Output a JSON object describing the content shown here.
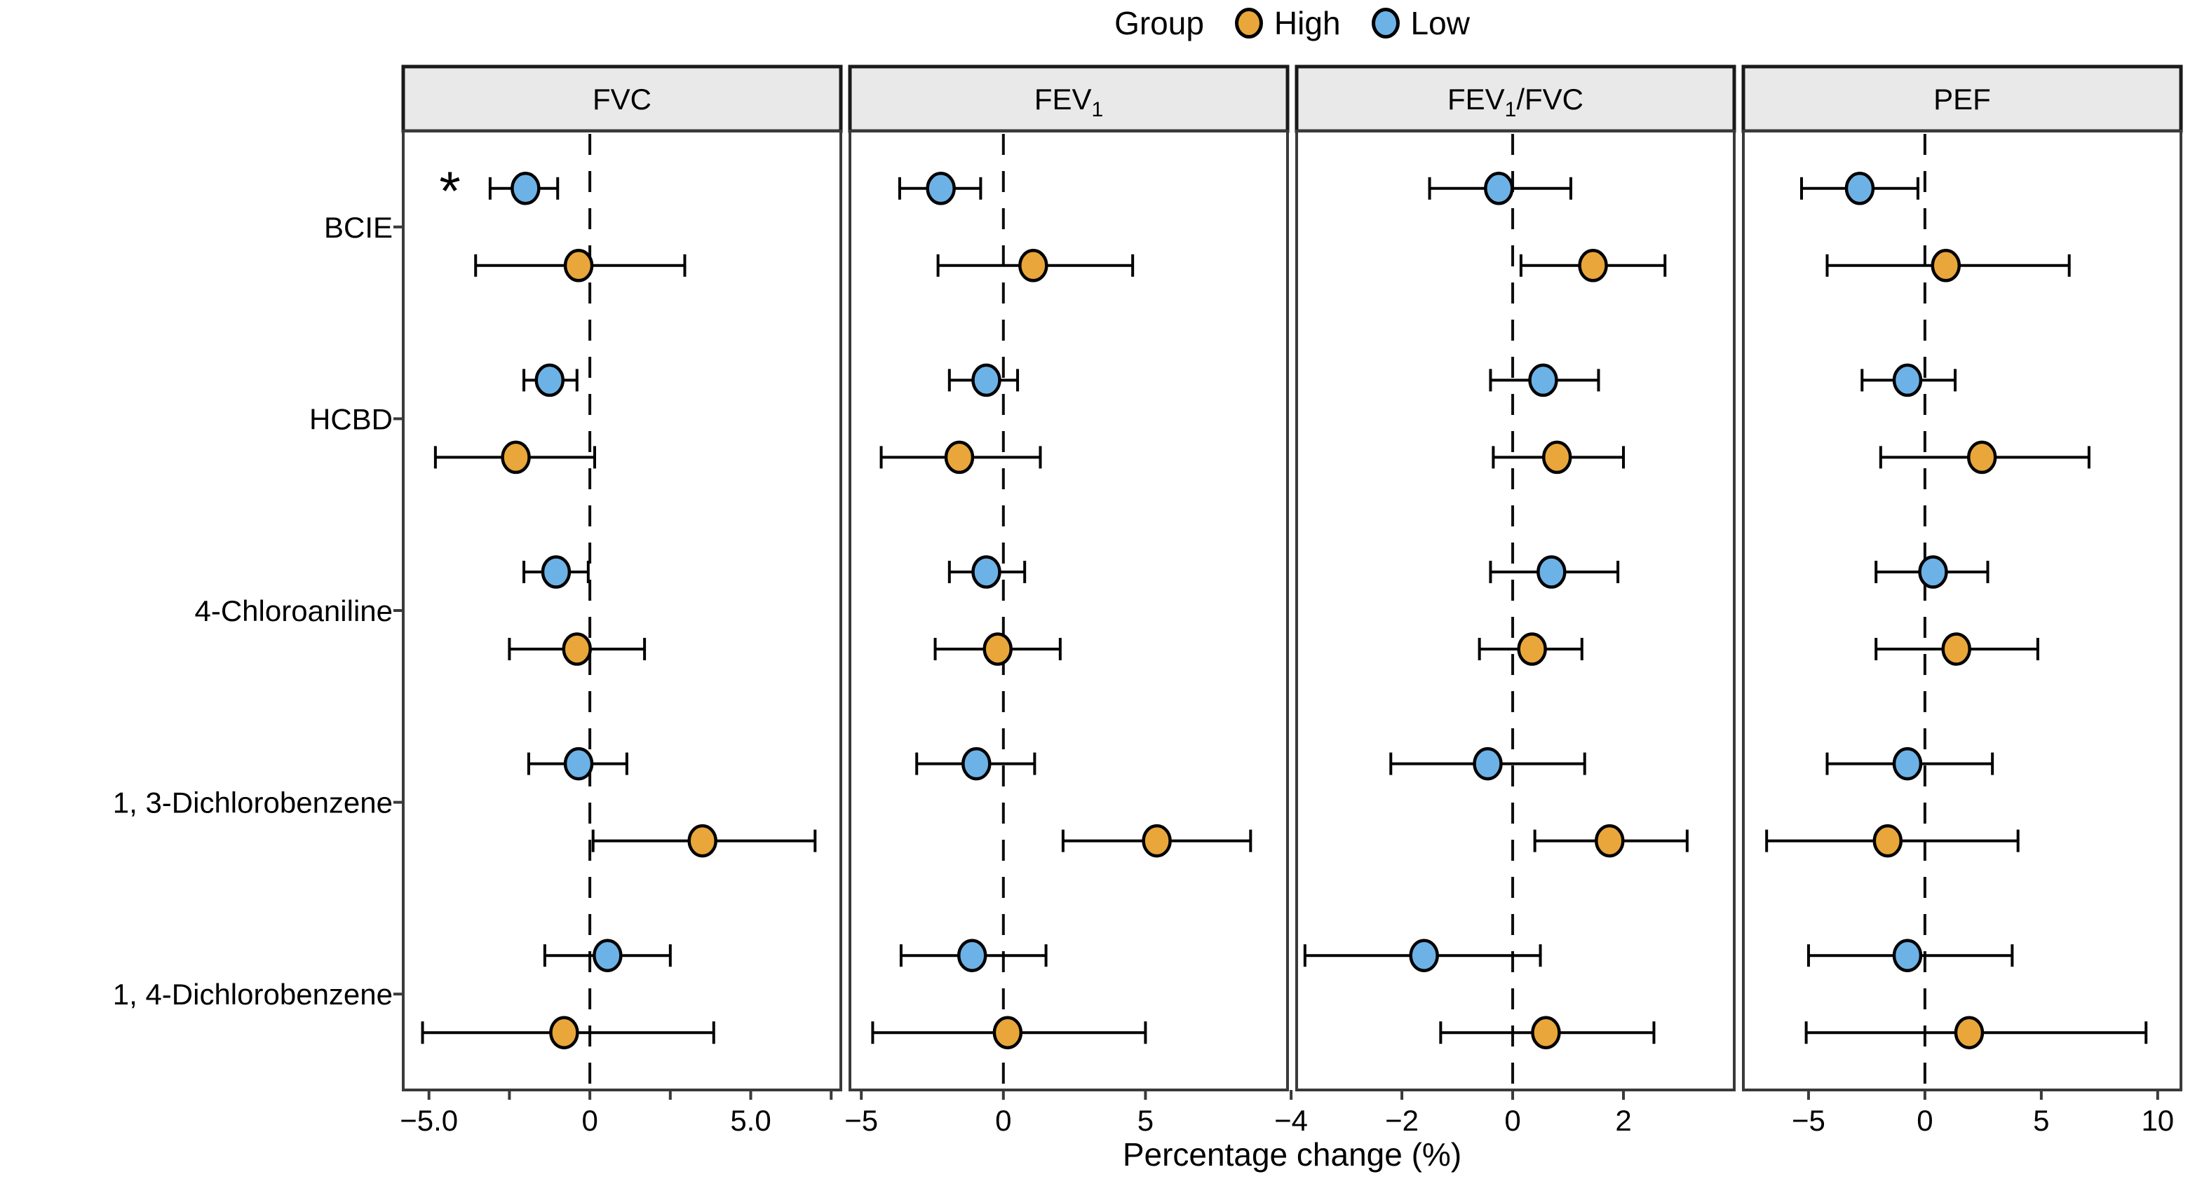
{
  "legend": {
    "title": "Group",
    "items": [
      {
        "label": "High",
        "color": "#E9A63A"
      },
      {
        "label": "Low",
        "color": "#6CB2E7"
      }
    ]
  },
  "axis": {
    "xlabel": "Percentage change (%)"
  },
  "chart_data": {
    "type": "scatter",
    "subtype": "horizontal-dot-whisker-forest",
    "orientation": "horizontal",
    "xlabel": "Percentage change (%)",
    "categories": [
      "BCIE",
      "HCBD",
      "4-Chloroaniline",
      "1, 3-Dichlorobenzene",
      "1, 4-Dichlorobenzene"
    ],
    "groups": [
      "High",
      "Low"
    ],
    "group_colors": {
      "High": "#E9A63A",
      "Low": "#6CB2E7"
    },
    "group_order_within_row": [
      "Low",
      "High"
    ],
    "zero_line": {
      "x": 0,
      "style": "dashed"
    },
    "legend_position": "top",
    "grid": false,
    "panels": [
      {
        "id": "FVC",
        "title_parts": [
          [
            "FVC",
            false
          ]
        ],
        "xlim": [
          -5.8,
          7.8
        ],
        "ticks": [
          -5,
          -2.5,
          0,
          2.5,
          5,
          7.5
        ],
        "tick_labels": [
          "−5.0",
          "",
          "0",
          "",
          "5.0",
          ""
        ],
        "series": [
          {
            "group": "Low",
            "points": [
              {
                "category": "BCIE",
                "est": -2.0,
                "lo": -3.1,
                "hi": -1.0
              },
              {
                "category": "HCBD",
                "est": -1.25,
                "lo": -2.05,
                "hi": -0.4
              },
              {
                "category": "4-Chloroaniline",
                "est": -1.05,
                "lo": -2.05,
                "hi": -0.05
              },
              {
                "category": "1, 3-Dichlorobenzene",
                "est": -0.35,
                "lo": -1.9,
                "hi": 1.15
              },
              {
                "category": "1, 4-Dichlorobenzene",
                "est": 0.55,
                "lo": -1.4,
                "hi": 2.5
              }
            ]
          },
          {
            "group": "High",
            "points": [
              {
                "category": "BCIE",
                "est": -0.35,
                "lo": -3.55,
                "hi": 2.95
              },
              {
                "category": "HCBD",
                "est": -2.3,
                "lo": -4.8,
                "hi": 0.15
              },
              {
                "category": "4-Chloroaniline",
                "est": -0.4,
                "lo": -2.5,
                "hi": 1.7
              },
              {
                "category": "1, 3-Dichlorobenzene",
                "est": 3.5,
                "lo": 0.1,
                "hi": 7.0
              },
              {
                "category": "1, 4-Dichlorobenzene",
                "est": -0.8,
                "lo": -5.2,
                "hi": 3.85
              }
            ]
          }
        ]
      },
      {
        "id": "FEV1",
        "title_parts": [
          [
            "FEV",
            false
          ],
          [
            "1",
            true
          ]
        ],
        "xlim": [
          -5.4,
          10.0
        ],
        "ticks": [
          -5,
          0,
          5
        ],
        "tick_labels": [
          "−5",
          "0",
          "5"
        ],
        "series": [
          {
            "group": "Low",
            "points": [
              {
                "category": "BCIE",
                "est": -2.2,
                "lo": -3.65,
                "hi": -0.8
              },
              {
                "category": "HCBD",
                "est": -0.6,
                "lo": -1.9,
                "hi": 0.5
              },
              {
                "category": "4-Chloroaniline",
                "est": -0.6,
                "lo": -1.9,
                "hi": 0.75
              },
              {
                "category": "1, 3-Dichlorobenzene",
                "est": -0.95,
                "lo": -3.05,
                "hi": 1.1
              },
              {
                "category": "1, 4-Dichlorobenzene",
                "est": -1.1,
                "lo": -3.6,
                "hi": 1.5
              }
            ]
          },
          {
            "group": "High",
            "points": [
              {
                "category": "BCIE",
                "est": 1.05,
                "lo": -2.3,
                "hi": 4.55
              },
              {
                "category": "HCBD",
                "est": -1.55,
                "lo": -4.3,
                "hi": 1.3
              },
              {
                "category": "4-Chloroaniline",
                "est": -0.2,
                "lo": -2.4,
                "hi": 2.0
              },
              {
                "category": "1, 3-Dichlorobenzene",
                "est": 5.4,
                "lo": 2.1,
                "hi": 8.7
              },
              {
                "category": "1, 4-Dichlorobenzene",
                "est": 0.15,
                "lo": -4.6,
                "hi": 5.0
              }
            ]
          }
        ]
      },
      {
        "id": "FEV1/FVC",
        "title_parts": [
          [
            "FEV",
            false
          ],
          [
            "1",
            true
          ],
          [
            "/FVC",
            false
          ]
        ],
        "xlim": [
          -3.9,
          4.0
        ],
        "ticks": [
          -4,
          -2,
          0,
          2
        ],
        "tick_labels": [
          "−4",
          "−2",
          "0",
          "2"
        ],
        "series": [
          {
            "group": "Low",
            "points": [
              {
                "category": "BCIE",
                "est": -0.25,
                "lo": -1.5,
                "hi": 1.05
              },
              {
                "category": "HCBD",
                "est": 0.55,
                "lo": -0.4,
                "hi": 1.55
              },
              {
                "category": "4-Chloroaniline",
                "est": 0.7,
                "lo": -0.4,
                "hi": 1.9
              },
              {
                "category": "1, 3-Dichlorobenzene",
                "est": -0.45,
                "lo": -2.2,
                "hi": 1.3
              },
              {
                "category": "1, 4-Dichlorobenzene",
                "est": -1.6,
                "lo": -3.75,
                "hi": 0.5
              }
            ]
          },
          {
            "group": "High",
            "points": [
              {
                "category": "BCIE",
                "est": 1.45,
                "lo": 0.15,
                "hi": 2.75
              },
              {
                "category": "HCBD",
                "est": 0.8,
                "lo": -0.35,
                "hi": 2.0
              },
              {
                "category": "4-Chloroaniline",
                "est": 0.35,
                "lo": -0.6,
                "hi": 1.25
              },
              {
                "category": "1, 3-Dichlorobenzene",
                "est": 1.75,
                "lo": 0.4,
                "hi": 3.15
              },
              {
                "category": "1, 4-Dichlorobenzene",
                "est": 0.6,
                "lo": -1.3,
                "hi": 2.55
              }
            ]
          }
        ]
      },
      {
        "id": "PEF",
        "title_parts": [
          [
            "PEF",
            false
          ]
        ],
        "xlim": [
          -7.8,
          11.0
        ],
        "ticks": [
          -5,
          0,
          5,
          10
        ],
        "tick_labels": [
          "−5",
          "0",
          "5",
          "10"
        ],
        "series": [
          {
            "group": "Low",
            "points": [
              {
                "category": "BCIE",
                "est": -2.8,
                "lo": -5.3,
                "hi": -0.3
              },
              {
                "category": "HCBD",
                "est": -0.75,
                "lo": -2.7,
                "hi": 1.3
              },
              {
                "category": "4-Chloroaniline",
                "est": 0.35,
                "lo": -2.1,
                "hi": 2.7
              },
              {
                "category": "1, 3-Dichlorobenzene",
                "est": -0.75,
                "lo": -4.2,
                "hi": 2.9
              },
              {
                "category": "1, 4-Dichlorobenzene",
                "est": -0.75,
                "lo": -5.0,
                "hi": 3.75
              }
            ]
          },
          {
            "group": "High",
            "points": [
              {
                "category": "BCIE",
                "est": 0.9,
                "lo": -4.2,
                "hi": 6.2
              },
              {
                "category": "HCBD",
                "est": 2.45,
                "lo": -1.9,
                "hi": 7.05
              },
              {
                "category": "4-Chloroaniline",
                "est": 1.35,
                "lo": -2.1,
                "hi": 4.85
              },
              {
                "category": "1, 3-Dichlorobenzene",
                "est": -1.6,
                "lo": -6.8,
                "hi": 4.0
              },
              {
                "category": "1, 4-Dichlorobenzene",
                "est": 1.9,
                "lo": -5.1,
                "hi": 9.5
              }
            ]
          }
        ]
      }
    ],
    "annotations": [
      {
        "symbol": "*",
        "panel_index": 0,
        "category_index": 0,
        "group": "Low",
        "x": -4.35
      }
    ]
  }
}
